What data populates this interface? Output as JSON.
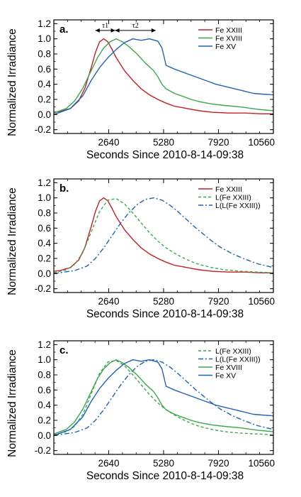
{
  "colors": {
    "red": "#c41e24",
    "green": "#3aa84a",
    "blue": "#1e64b4",
    "axis": "#000000"
  },
  "chart_data": [
    {
      "type": "line",
      "panel_label": "a.",
      "xlabel": "Seconds Since 2010-8-14-09:38",
      "ylabel": "Normalized Irradiance",
      "xlim": [
        0,
        10560
      ],
      "ylim": [
        -0.25,
        1.25
      ],
      "xticks": [
        "2640",
        "5280",
        "7920",
        "10560"
      ],
      "yticks": [
        "-0.2",
        "0.0",
        "0.2",
        "0.4",
        "0.6",
        "0.8",
        "1.0",
        "1.2"
      ],
      "grid": false,
      "legend_position": "top-right",
      "annotations": [
        "τ1",
        "τ2"
      ],
      "series": [
        {
          "name": "Fe XXIII",
          "color_key": "red",
          "style": "solid",
          "x": [
            0,
            300,
            800,
            1200,
            1500,
            1800,
            2000,
            2200,
            2400,
            2600,
            2800,
            3000,
            3400,
            3800,
            4200,
            4600,
            5000,
            5400,
            5800,
            6200,
            6600,
            7000,
            7600,
            8400,
            9200,
            10000,
            10560
          ],
          "y": [
            0.03,
            0.04,
            0.08,
            0.18,
            0.35,
            0.62,
            0.82,
            0.96,
            1.0,
            0.96,
            0.86,
            0.75,
            0.58,
            0.45,
            0.34,
            0.26,
            0.2,
            0.15,
            0.11,
            0.09,
            0.07,
            0.05,
            0.03,
            0.02,
            0.02,
            0.01,
            0.01
          ]
        },
        {
          "name": "Fe XVIII",
          "color_key": "green",
          "style": "solid",
          "x": [
            0,
            600,
            1000,
            1400,
            1800,
            2100,
            2400,
            2700,
            3000,
            3300,
            3600,
            4000,
            4400,
            4800,
            5000,
            5200,
            5400,
            5800,
            6200,
            6600,
            7000,
            7600,
            8200,
            9000,
            9800,
            10560
          ],
          "y": [
            0.02,
            0.08,
            0.18,
            0.35,
            0.58,
            0.75,
            0.88,
            0.96,
            1.0,
            0.96,
            0.9,
            0.8,
            0.68,
            0.58,
            0.5,
            0.4,
            0.34,
            0.28,
            0.24,
            0.2,
            0.17,
            0.14,
            0.12,
            0.1,
            0.07,
            0.05
          ]
        },
        {
          "name": "Fe XV",
          "color_key": "blue",
          "style": "solid",
          "x": [
            0,
            800,
            1400,
            1800,
            2200,
            2600,
            3000,
            3400,
            3800,
            4200,
            4600,
            5000,
            5200,
            5400,
            5800,
            6200,
            6600,
            7000,
            7400,
            7800,
            8400,
            9000,
            9600,
            10000,
            10560
          ],
          "y": [
            0.0,
            0.08,
            0.25,
            0.45,
            0.62,
            0.75,
            0.86,
            0.95,
            1.0,
            0.98,
            1.0,
            0.97,
            0.88,
            0.65,
            0.6,
            0.56,
            0.52,
            0.48,
            0.44,
            0.4,
            0.36,
            0.32,
            0.28,
            0.27,
            0.26
          ]
        }
      ]
    },
    {
      "type": "line",
      "panel_label": "b.",
      "xlabel": "Seconds Since 2010-8-14-09:38",
      "ylabel": "Normalized Irradiance",
      "xlim": [
        0,
        10560
      ],
      "ylim": [
        -0.25,
        1.25
      ],
      "xticks": [
        "2640",
        "5280",
        "7920",
        "10560"
      ],
      "yticks": [
        "-0.2",
        "0.0",
        "0.2",
        "0.4",
        "0.6",
        "0.8",
        "1.0",
        "1.2"
      ],
      "grid": false,
      "legend_position": "top-right",
      "series": [
        {
          "name": "Fe XXIII",
          "color_key": "red",
          "style": "solid",
          "x": [
            0,
            300,
            800,
            1200,
            1500,
            1800,
            2000,
            2200,
            2400,
            2600,
            2800,
            3000,
            3400,
            3800,
            4200,
            4600,
            5000,
            5400,
            5800,
            6200,
            6600,
            7000,
            7600,
            8400,
            9200,
            10000,
            10560
          ],
          "y": [
            0.03,
            0.04,
            0.08,
            0.18,
            0.35,
            0.62,
            0.82,
            0.96,
            1.0,
            0.96,
            0.86,
            0.75,
            0.58,
            0.45,
            0.34,
            0.26,
            0.2,
            0.15,
            0.11,
            0.09,
            0.07,
            0.05,
            0.03,
            0.02,
            0.02,
            0.01,
            0.01
          ]
        },
        {
          "name": "L(Fe XXIII)",
          "color_key": "green",
          "style": "dashed",
          "x": [
            0,
            600,
            1000,
            1400,
            1800,
            2200,
            2600,
            3000,
            3400,
            3800,
            4200,
            4600,
            5000,
            5400,
            5800,
            6200,
            6600,
            7000,
            7600,
            8200,
            9000,
            9800,
            10560
          ],
          "y": [
            0.01,
            0.05,
            0.12,
            0.28,
            0.55,
            0.82,
            0.97,
            0.99,
            0.92,
            0.8,
            0.67,
            0.54,
            0.43,
            0.34,
            0.27,
            0.21,
            0.16,
            0.12,
            0.08,
            0.05,
            0.03,
            0.02,
            0.01
          ]
        },
        {
          "name": "L(L(Fe XXIII))",
          "color_key": "blue",
          "style": "dashdot",
          "x": [
            0,
            1000,
            1600,
            2000,
            2400,
            2800,
            3200,
            3600,
            4000,
            4400,
            4800,
            5200,
            5600,
            6000,
            6400,
            6800,
            7200,
            7600,
            8000,
            8600,
            9200,
            9800,
            10560
          ],
          "y": [
            0.0,
            0.04,
            0.1,
            0.2,
            0.34,
            0.5,
            0.66,
            0.8,
            0.91,
            0.98,
            1.0,
            0.97,
            0.9,
            0.81,
            0.71,
            0.61,
            0.52,
            0.43,
            0.35,
            0.26,
            0.19,
            0.13,
            0.08
          ]
        }
      ]
    },
    {
      "type": "line",
      "panel_label": "c.",
      "xlabel": "Seconds Since 2010-8-14-09:38",
      "ylabel": "Normalized Irradiance",
      "xlim": [
        0,
        10560
      ],
      "ylim": [
        -0.25,
        1.25
      ],
      "xticks": [
        "2640",
        "5280",
        "7920",
        "10560"
      ],
      "yticks": [
        "-0.2",
        "0.0",
        "0.2",
        "0.4",
        "0.6",
        "0.8",
        "1.0",
        "1.2"
      ],
      "grid": false,
      "legend_position": "top-right",
      "series": [
        {
          "name": "L(Fe XXIII)",
          "color_key": "green",
          "style": "dashed",
          "x": [
            0,
            600,
            1000,
            1400,
            1800,
            2200,
            2600,
            3000,
            3400,
            3800,
            4200,
            4600,
            5000,
            5400,
            5800,
            6200,
            6600,
            7000,
            7600,
            8200,
            9000,
            9800,
            10560
          ],
          "y": [
            0.01,
            0.05,
            0.12,
            0.28,
            0.55,
            0.82,
            0.97,
            0.99,
            0.92,
            0.8,
            0.67,
            0.54,
            0.43,
            0.34,
            0.27,
            0.21,
            0.16,
            0.12,
            0.08,
            0.05,
            0.03,
            0.02,
            0.01
          ]
        },
        {
          "name": "L(L(Fe XXIII))",
          "color_key": "blue",
          "style": "dashdot",
          "x": [
            0,
            1000,
            1600,
            2000,
            2400,
            2800,
            3200,
            3600,
            4000,
            4400,
            4800,
            5200,
            5600,
            6000,
            6400,
            6800,
            7200,
            7600,
            8000,
            8600,
            9200,
            9800,
            10560
          ],
          "y": [
            0.0,
            0.04,
            0.1,
            0.2,
            0.34,
            0.5,
            0.66,
            0.8,
            0.91,
            0.98,
            1.0,
            0.97,
            0.9,
            0.81,
            0.71,
            0.61,
            0.52,
            0.43,
            0.35,
            0.26,
            0.19,
            0.13,
            0.08
          ]
        },
        {
          "name": "Fe XVIII",
          "color_key": "green",
          "style": "solid",
          "x": [
            0,
            600,
            1000,
            1400,
            1800,
            2100,
            2400,
            2700,
            3000,
            3300,
            3600,
            4000,
            4400,
            4800,
            5000,
            5200,
            5400,
            5800,
            6200,
            6600,
            7000,
            7600,
            8200,
            9000,
            9800,
            10560
          ],
          "y": [
            0.02,
            0.08,
            0.18,
            0.35,
            0.58,
            0.75,
            0.88,
            0.96,
            1.0,
            0.96,
            0.9,
            0.8,
            0.68,
            0.58,
            0.5,
            0.4,
            0.34,
            0.28,
            0.24,
            0.2,
            0.17,
            0.14,
            0.12,
            0.1,
            0.07,
            0.05
          ]
        },
        {
          "name": "Fe XV",
          "color_key": "blue",
          "style": "solid",
          "x": [
            0,
            800,
            1400,
            1800,
            2200,
            2600,
            3000,
            3400,
            3800,
            4200,
            4600,
            5000,
            5200,
            5400,
            5800,
            6200,
            6600,
            7000,
            7400,
            7800,
            8400,
            9000,
            9600,
            10000,
            10560
          ],
          "y": [
            0.0,
            0.08,
            0.25,
            0.45,
            0.62,
            0.75,
            0.86,
            0.95,
            1.0,
            0.98,
            1.0,
            0.97,
            0.88,
            0.65,
            0.6,
            0.56,
            0.52,
            0.48,
            0.44,
            0.4,
            0.36,
            0.32,
            0.28,
            0.27,
            0.26
          ]
        }
      ]
    }
  ]
}
